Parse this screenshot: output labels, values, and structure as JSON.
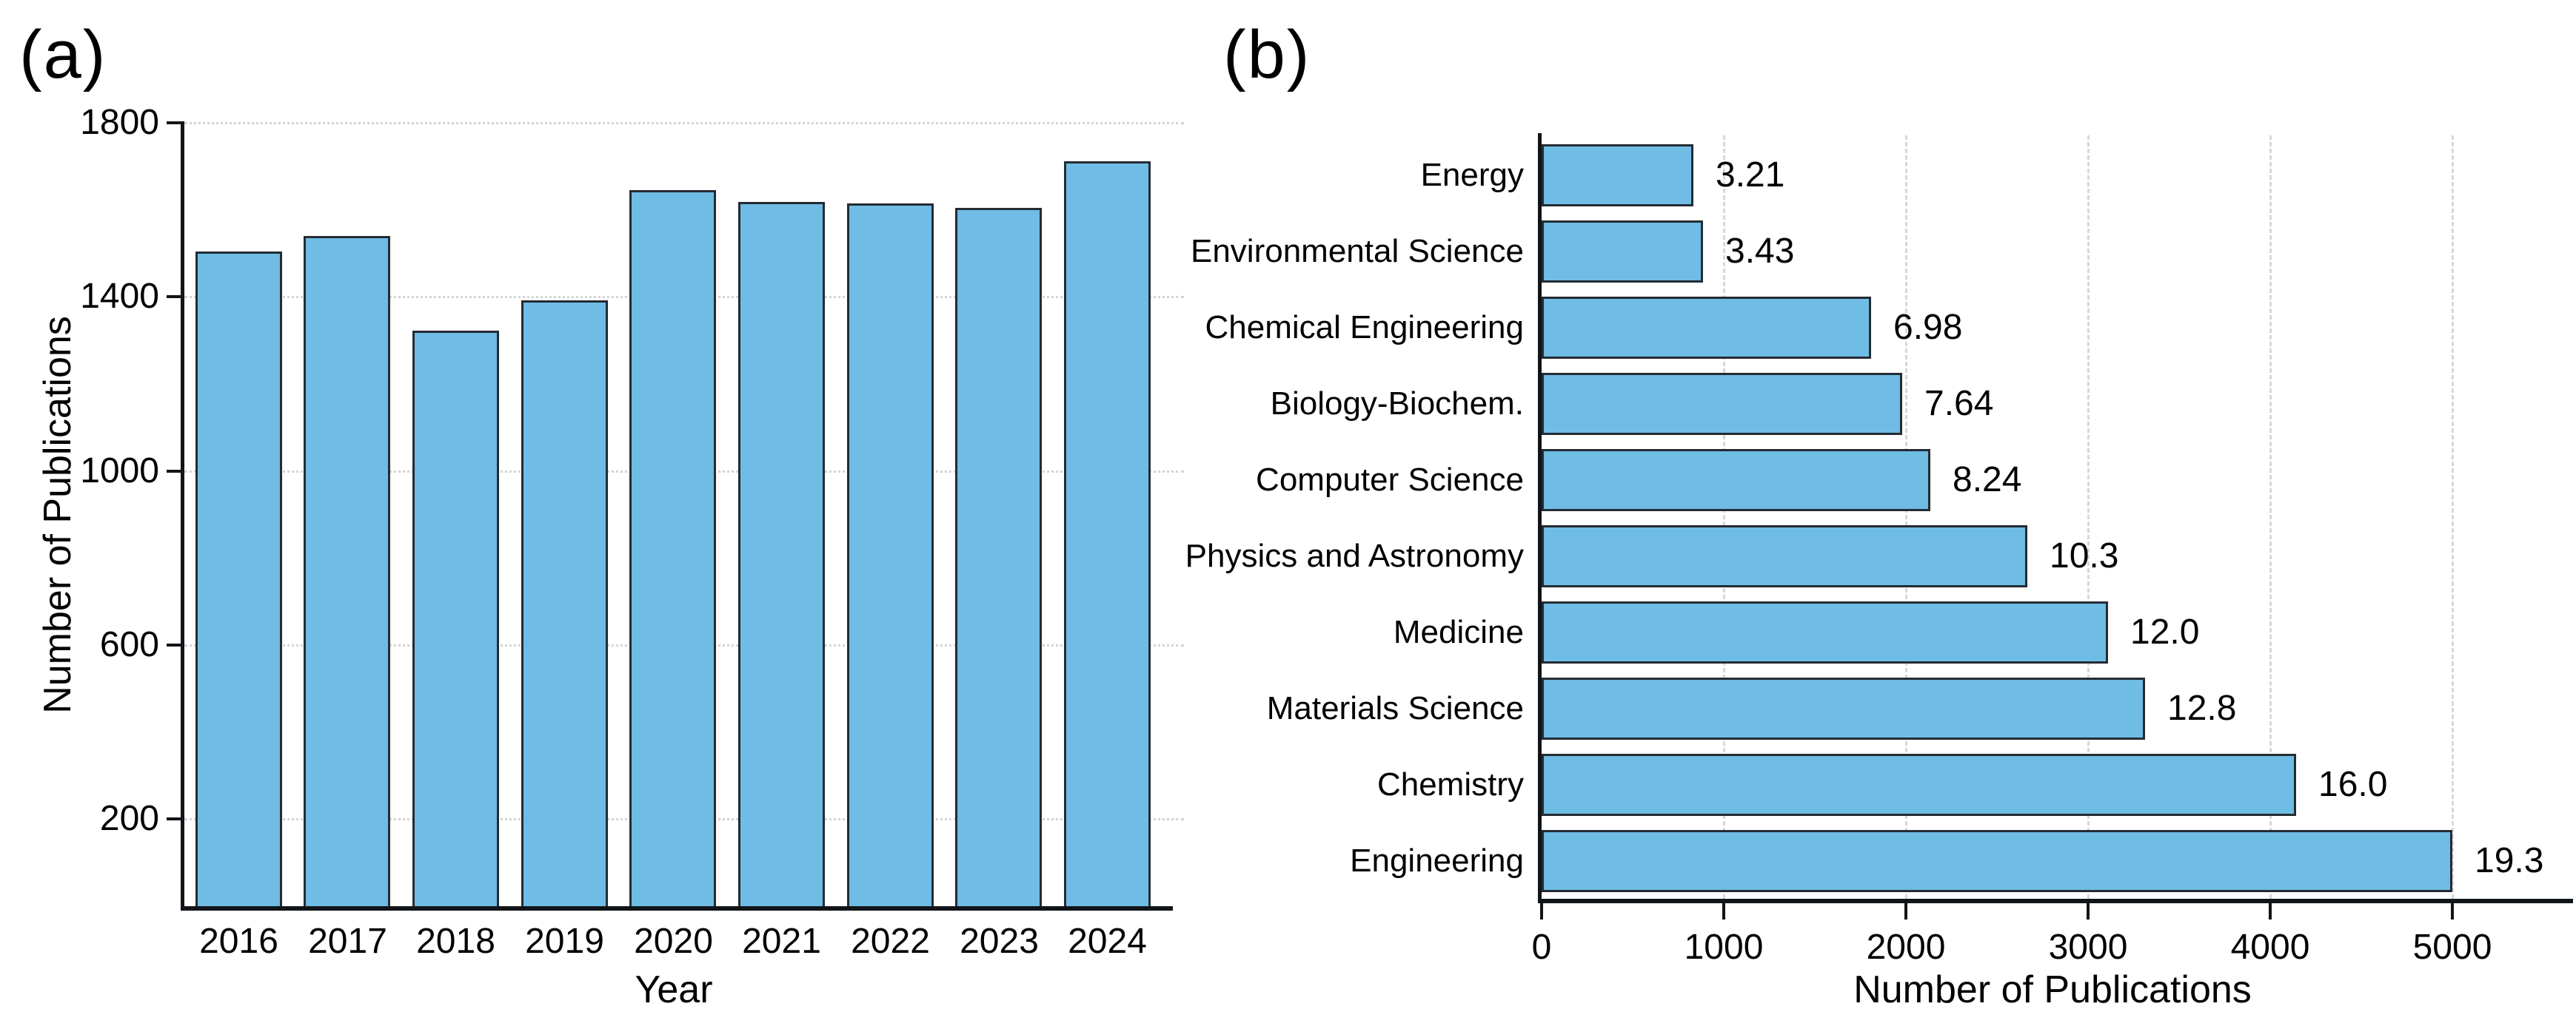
{
  "panels": {
    "a": {
      "tag": "(a)"
    },
    "b": {
      "tag": "(b)"
    }
  },
  "colors": {
    "bar_fill": "#6FBCE4",
    "bar_edge": "#242B33",
    "spine": "#111418",
    "grid": "#D6D6D6",
    "text": "#000000"
  },
  "chart_data": [
    {
      "type": "bar",
      "panel": "(a)",
      "orientation": "vertical",
      "title": "",
      "xlabel": "Year",
      "ylabel": "Number of Publications",
      "categories": [
        "2016",
        "2017",
        "2018",
        "2019",
        "2020",
        "2021",
        "2022",
        "2023",
        "2024"
      ],
      "values": [
        1505,
        1540,
        1322,
        1392,
        1646,
        1618,
        1615,
        1605,
        1712
      ],
      "yticks": [
        200,
        600,
        1000,
        1400,
        1800
      ],
      "ylim": [
        0,
        1800
      ],
      "grid": "horizontal dotted",
      "legend": "none"
    },
    {
      "type": "bar",
      "panel": "(b)",
      "orientation": "horizontal",
      "title": "",
      "xlabel": "Number of Publications",
      "ylabel": "",
      "categories": [
        "Energy",
        "Environmental Science",
        "Chemical Engineering",
        "Biology-Biochem.",
        "Computer Science",
        "Physics and Astronomy",
        "Medicine",
        "Materials Science",
        "Chemistry",
        "Engineering"
      ],
      "values": [
        832,
        888,
        1808,
        1979,
        2134,
        2668,
        3108,
        3315,
        4144,
        5000
      ],
      "bar_labels": [
        "3.21",
        "3.43",
        "6.98",
        "7.64",
        "8.24",
        "10.3",
        "12.0",
        "12.8",
        "16.0",
        "19.3"
      ],
      "xticks": [
        0,
        1000,
        2000,
        3000,
        4000,
        5000
      ],
      "xlim": [
        0,
        5580
      ],
      "grid": "vertical dashed",
      "legend": "none"
    }
  ]
}
